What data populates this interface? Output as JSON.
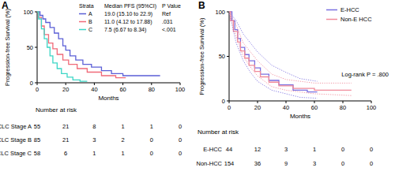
{
  "chart_data": [
    {
      "type": "line",
      "title": "A",
      "y_label": "Progression-free Survival (%)",
      "x_label": "Months",
      "xlim": [
        0,
        100
      ],
      "xticks": [
        0,
        20,
        40,
        60,
        80,
        100
      ],
      "ylim": [
        0,
        100
      ],
      "yticks": [
        0,
        50,
        100
      ],
      "legend": "upper right",
      "legend_table": {
        "header": [
          "Strata",
          "Median PFS (95%CI)",
          "P Value"
        ],
        "rows": [
          [
            "19.0 (15.10 to 22.9)",
            "Ref"
          ],
          [
            "11.0 (4.12 to 17.88)",
            ".031"
          ],
          [
            "7.5 (6.67 to 8.34)",
            "<.001"
          ]
        ]
      },
      "series": [
        {
          "name": "A",
          "color": "#5b5fd6",
          "line_style": "solid",
          "x": [
            0,
            2,
            2,
            4,
            4,
            6,
            6,
            9,
            9,
            12,
            12,
            15,
            15,
            18,
            18,
            20,
            20,
            23,
            23,
            27,
            27,
            32,
            32,
            38,
            38,
            45,
            45,
            52,
            52,
            60,
            60,
            86
          ],
          "values": [
            100,
            100,
            95,
            95,
            90,
            90,
            85,
            85,
            78,
            78,
            70,
            70,
            62,
            62,
            52,
            52,
            46,
            46,
            38,
            38,
            32,
            32,
            26,
            26,
            22,
            22,
            17,
            17,
            13,
            13,
            10,
            10
          ]
        },
        {
          "name": "B",
          "color": "#f06a78",
          "line_style": "solid",
          "x": [
            0,
            1,
            1,
            3,
            3,
            5,
            5,
            8,
            8,
            11,
            11,
            14,
            14,
            18,
            18,
            22,
            22,
            28,
            28,
            35,
            35,
            45,
            45,
            55,
            55,
            62
          ],
          "values": [
            100,
            100,
            92,
            92,
            80,
            80,
            68,
            68,
            56,
            56,
            48,
            48,
            40,
            40,
            32,
            32,
            26,
            26,
            20,
            20,
            15,
            15,
            10,
            10,
            7,
            7
          ]
        },
        {
          "name": "C",
          "color": "#3cd6c6",
          "line_style": "solid",
          "x": [
            0,
            1,
            1,
            3,
            3,
            5,
            5,
            7,
            7,
            9,
            9,
            11,
            11,
            14,
            14,
            17,
            17,
            21,
            21,
            25,
            25,
            30,
            30,
            35
          ],
          "values": [
            100,
            100,
            90,
            90,
            76,
            76,
            62,
            62,
            50,
            50,
            38,
            38,
            28,
            28,
            20,
            20,
            13,
            13,
            8,
            8,
            4,
            4,
            2,
            2
          ]
        }
      ],
      "risk_table": {
        "title": "Number at risk",
        "rows": [
          {
            "label": "BCLC Stage A",
            "values": [
              55,
              21,
              8,
              1,
              1,
              0
            ]
          },
          {
            "label": "BCLC Stage B",
            "values": [
              85,
              21,
              3,
              2,
              0,
              0
            ]
          },
          {
            "label": "BCLC Stage C",
            "values": [
              58,
              6,
              1,
              1,
              0,
              0
            ]
          }
        ]
      }
    },
    {
      "type": "line",
      "title": "B",
      "y_label": "Progression-free Survival (%)",
      "x_label": "Months",
      "xlim": [
        0,
        100
      ],
      "xticks": [
        0,
        20,
        40,
        60,
        80,
        100
      ],
      "ylim": [
        0,
        100
      ],
      "yticks": [
        0,
        50,
        100
      ],
      "legend": "upper right",
      "annotation": "Log-rank P = .800",
      "series": [
        {
          "name": "E-HCC",
          "color": "#7a6fe0",
          "line_style": "solid",
          "x": [
            0,
            2,
            2,
            4,
            4,
            6,
            6,
            8,
            8,
            11,
            11,
            14,
            14,
            18,
            18,
            22,
            22,
            28,
            28,
            35,
            35,
            45,
            45,
            55,
            55,
            62
          ],
          "values": [
            100,
            100,
            90,
            90,
            80,
            80,
            70,
            70,
            60,
            60,
            52,
            52,
            45,
            45,
            37,
            37,
            30,
            30,
            23,
            23,
            18,
            18,
            12,
            12,
            10,
            10
          ]
        },
        {
          "name": "Non-E HCC",
          "color": "#f08a9a",
          "line_style": "solid",
          "x": [
            0,
            1,
            1,
            3,
            3,
            6,
            6,
            8,
            8,
            11,
            11,
            14,
            14,
            18,
            18,
            22,
            22,
            28,
            28,
            35,
            35,
            45,
            45,
            60,
            60,
            86
          ],
          "values": [
            100,
            100,
            90,
            90,
            78,
            78,
            66,
            66,
            56,
            56,
            48,
            48,
            40,
            40,
            33,
            33,
            27,
            27,
            21,
            21,
            17,
            17,
            14,
            14,
            12,
            12
          ]
        },
        {
          "color": "#7a6fe0",
          "line_style": "dotted",
          "x": [
            0,
            5,
            10,
            15,
            20,
            30,
            40,
            50,
            62
          ],
          "values": [
            100,
            90,
            75,
            65,
            55,
            40,
            32,
            25,
            22
          ]
        },
        {
          "color": "#7a6fe0",
          "line_style": "dotted",
          "x": [
            0,
            5,
            10,
            15,
            20,
            30,
            40,
            50,
            62
          ],
          "values": [
            100,
            65,
            45,
            32,
            22,
            12,
            8,
            4,
            3
          ]
        },
        {
          "color": "#f08a9a",
          "line_style": "dotted",
          "x": [
            0,
            5,
            10,
            15,
            20,
            30,
            40,
            60,
            86
          ],
          "values": [
            100,
            85,
            65,
            55,
            45,
            30,
            24,
            20,
            20
          ]
        },
        {
          "color": "#f08a9a",
          "line_style": "dotted",
          "x": [
            0,
            5,
            10,
            15,
            20,
            30,
            40,
            60,
            86
          ],
          "values": [
            100,
            72,
            50,
            38,
            28,
            16,
            12,
            8,
            6
          ]
        }
      ],
      "risk_table": {
        "title": "Number at risk",
        "rows": [
          {
            "label": "E-HCC",
            "values": [
              44,
              12,
              3,
              1,
              0,
              0
            ]
          },
          {
            "label": "Non-HCC",
            "values": [
              154,
              36,
              9,
              3,
              0,
              0
            ]
          }
        ]
      }
    }
  ]
}
